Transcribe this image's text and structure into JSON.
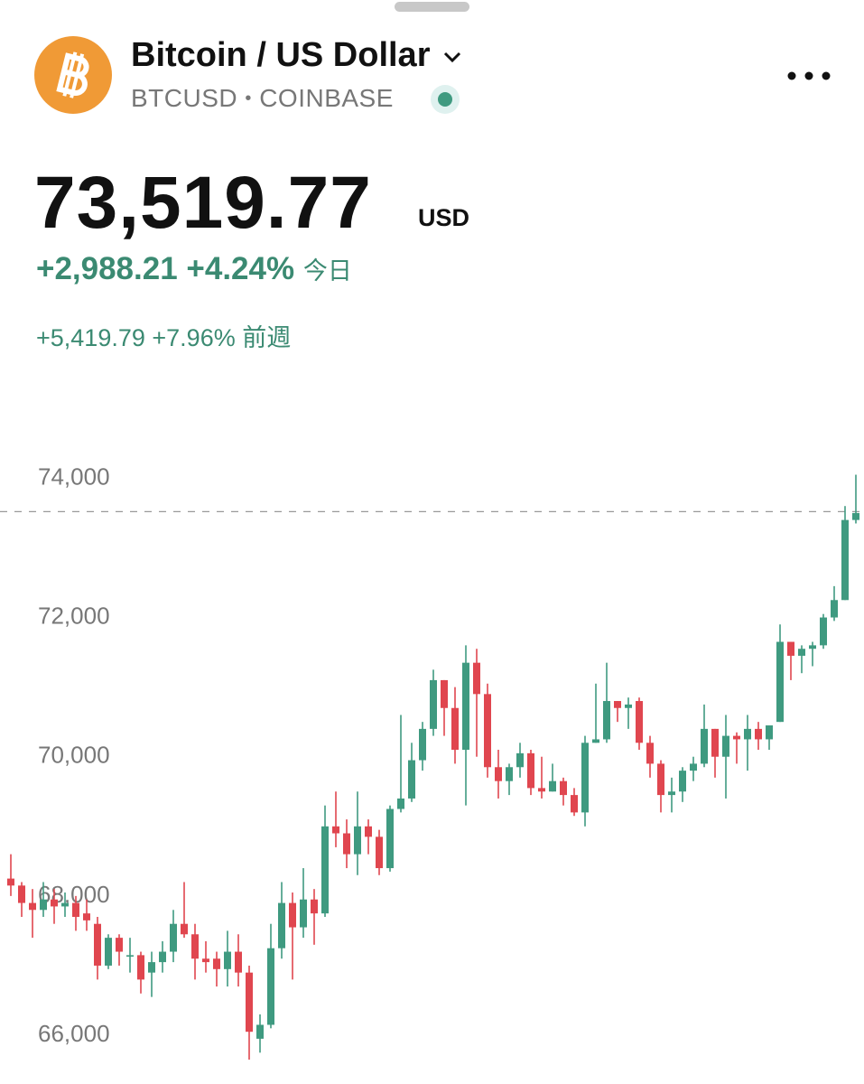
{
  "header": {
    "title": "Bitcoin / US Dollar",
    "symbol": "BTCUSD",
    "separator": "•",
    "exchange": "COINBASE",
    "price": "73,519.77",
    "currency": "USD",
    "day_change": "+2,988.21",
    "day_change_pct": "+4.24%",
    "day_label": "今日",
    "week_change": "+5,419.79",
    "week_change_pct": "+7.96%",
    "week_label": "前週"
  },
  "chart_data": {
    "type": "candlestick",
    "up_color": "#3f9a80",
    "down_color": "#e0464f",
    "ylim": [
      65300,
      74900
    ],
    "yticks": [
      {
        "value": 66000,
        "label": "66,000"
      },
      {
        "value": 68000,
        "label": "68,000"
      },
      {
        "value": 70000,
        "label": "70,000"
      },
      {
        "value": 72000,
        "label": "72,000"
      },
      {
        "value": 74000,
        "label": "74,000"
      }
    ],
    "price_line": 73519.77,
    "open": [
      68250,
      68150,
      67900,
      67800,
      67950,
      67850,
      67900,
      67750,
      67600,
      67000,
      67400,
      67150,
      67150,
      66900,
      67050,
      67200,
      67600,
      67450,
      67100,
      67100,
      66950,
      67200,
      66900,
      65950,
      66150,
      67250,
      67900,
      67550,
      67950,
      67750,
      69000,
      68900,
      68600,
      69000,
      68850,
      68400,
      69250,
      69400,
      69950,
      70400,
      71100,
      70700,
      70100,
      71350,
      70900,
      69850,
      69650,
      69850,
      70050,
      69550,
      69500,
      69650,
      69450,
      69200,
      70200,
      70250,
      70800,
      70700,
      70800,
      70200,
      69900,
      69450,
      69500,
      69800,
      69900,
      70400,
      70000,
      70300,
      70250,
      70400,
      70250,
      70500,
      71650,
      71450,
      71550,
      71600,
      72000,
      72250,
      73400
    ],
    "high": [
      68600,
      68200,
      68100,
      68200,
      68100,
      68050,
      68000,
      67950,
      67700,
      67450,
      67450,
      67400,
      67200,
      67200,
      67350,
      67800,
      68200,
      67600,
      67350,
      67200,
      67500,
      67450,
      67000,
      66300,
      67600,
      68200,
      68050,
      68400,
      68100,
      69300,
      69500,
      69100,
      69500,
      69100,
      68950,
      69300,
      70600,
      70200,
      70500,
      71250,
      71100,
      71000,
      71600,
      71550,
      71050,
      70100,
      69900,
      70200,
      70100,
      70000,
      69900,
      69700,
      69550,
      70300,
      71050,
      71350,
      70800,
      70850,
      70850,
      70300,
      69950,
      69700,
      69850,
      70000,
      70750,
      70400,
      70600,
      70350,
      70600,
      70500,
      70450,
      71900,
      71650,
      71600,
      71650,
      72050,
      72450,
      73600,
      74050
    ],
    "low": [
      68000,
      67700,
      67400,
      67700,
      67600,
      67700,
      67500,
      67500,
      66800,
      66950,
      67000,
      66900,
      66600,
      66550,
      66900,
      67050,
      67400,
      66800,
      66900,
      66700,
      66700,
      66700,
      65650,
      65750,
      66100,
      67100,
      66800,
      67400,
      67300,
      67700,
      68700,
      68400,
      68300,
      68600,
      68300,
      68350,
      69200,
      69350,
      69800,
      70300,
      70300,
      69900,
      69300,
      70000,
      69700,
      69400,
      69450,
      69700,
      69450,
      69400,
      69500,
      69300,
      69150,
      69000,
      70200,
      70200,
      70500,
      70400,
      70100,
      69700,
      69200,
      69200,
      69350,
      69650,
      69850,
      69700,
      69400,
      69900,
      69800,
      70100,
      70100,
      70500,
      71100,
      71200,
      71300,
      71550,
      71950,
      72250,
      73350
    ],
    "close": [
      68150,
      67900,
      67800,
      67950,
      67850,
      67900,
      67700,
      67650,
      67000,
      67400,
      67200,
      67150,
      66800,
      67050,
      67200,
      67600,
      67450,
      67100,
      67050,
      66950,
      67200,
      66900,
      66050,
      66150,
      67250,
      67900,
      67550,
      67950,
      67750,
      69000,
      68900,
      68600,
      69000,
      68850,
      68400,
      69250,
      69400,
      69950,
      70400,
      71100,
      70700,
      70100,
      71350,
      70900,
      69850,
      69650,
      69850,
      70050,
      69550,
      69500,
      69650,
      69450,
      69200,
      70200,
      70250,
      70800,
      70700,
      70750,
      70200,
      69900,
      69450,
      69500,
      69800,
      69900,
      70400,
      70000,
      70300,
      70250,
      70400,
      70250,
      70450,
      71650,
      71450,
      71550,
      71600,
      72000,
      72250,
      73400,
      73500
    ]
  }
}
